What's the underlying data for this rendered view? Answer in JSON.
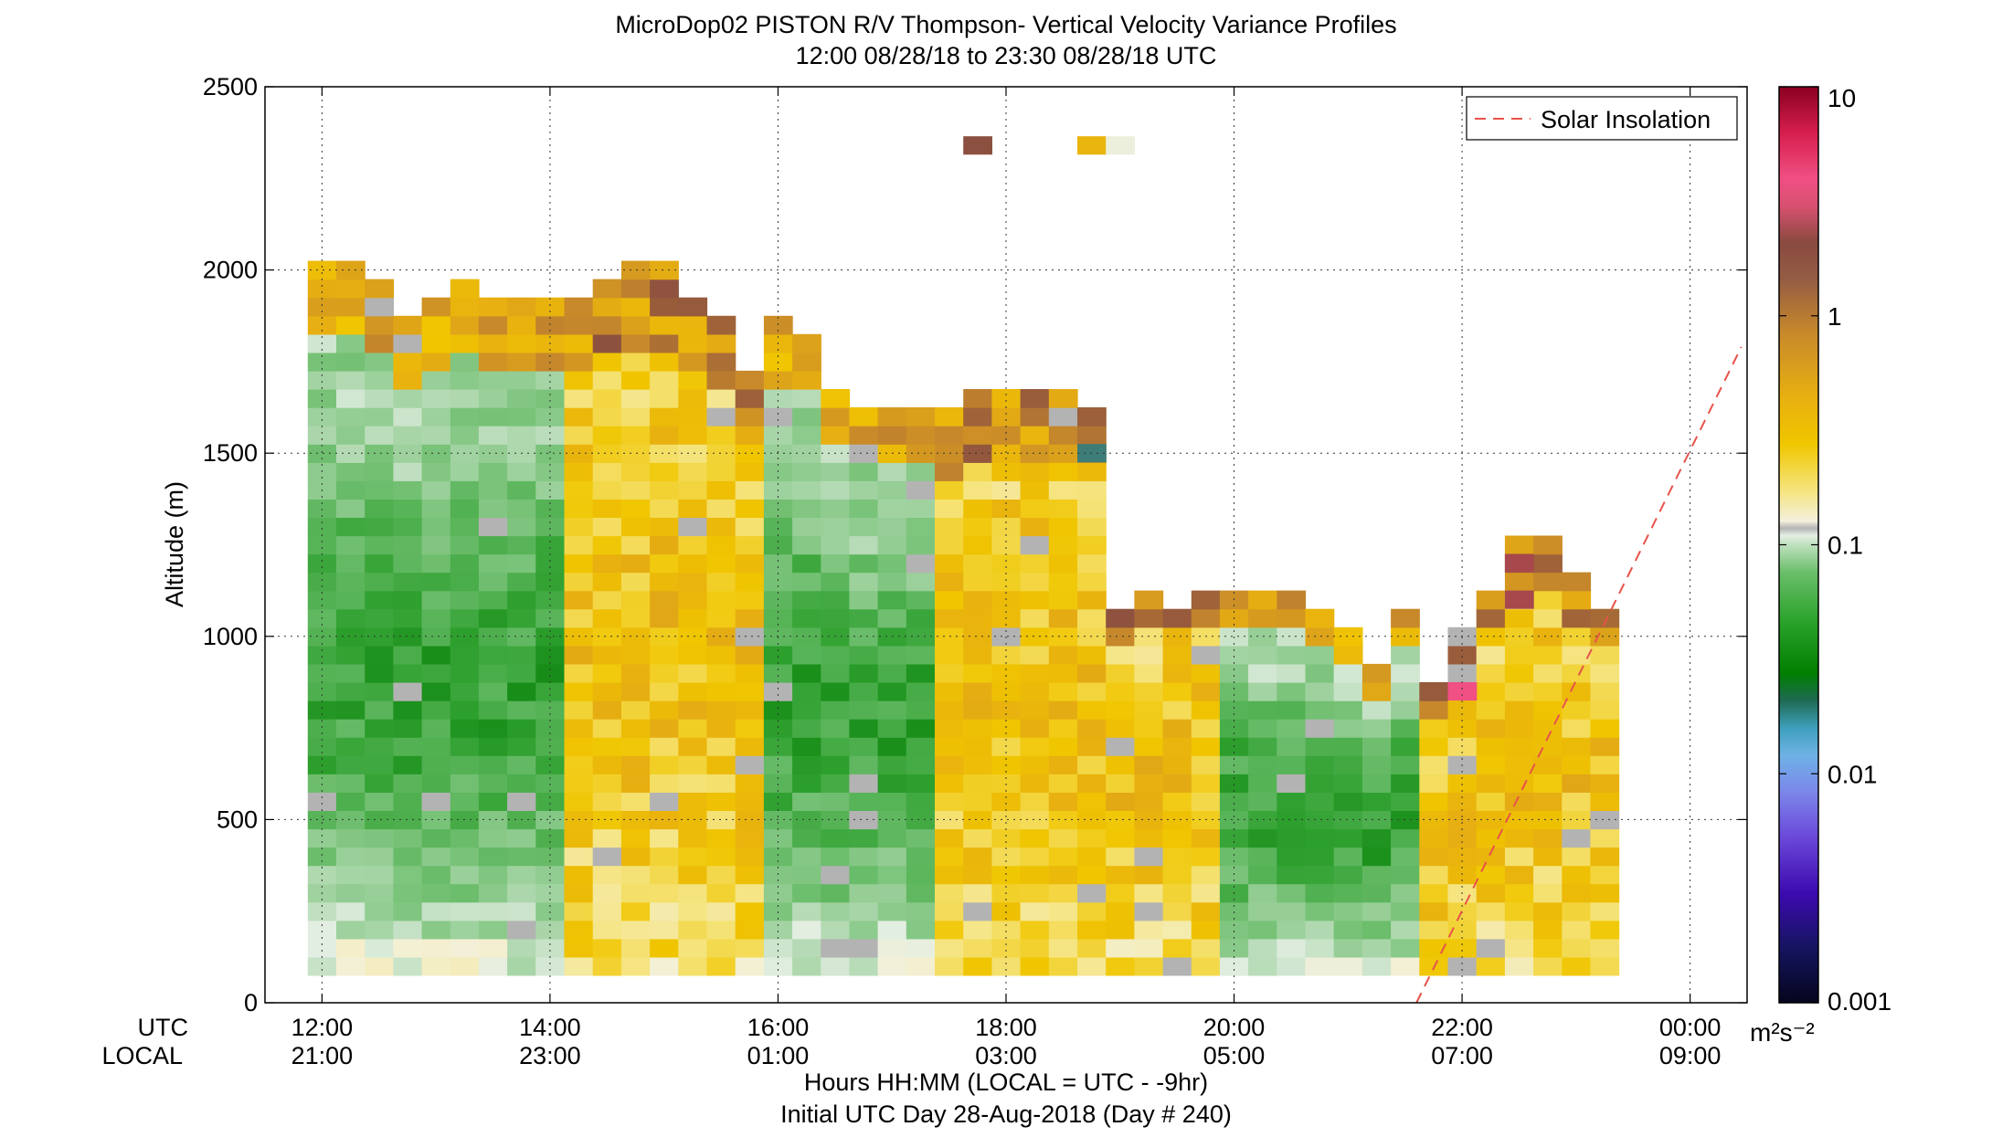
{
  "chart_data": {
    "type": "heatmap",
    "title": "MicroDop02 PISTON R/V Thompson- Vertical Velocity Variance Profiles",
    "subtitle": "12:00 08/28/18 to 23:30 08/28/18  UTC",
    "ylabel": "Altitude (m)",
    "xlabel": "Hours HH:MM  (LOCAL = UTC - -9hr)",
    "xlabel2": "Initial UTC Day 28-Aug-2018 (Day # 240)",
    "row_label_utc": "UTC",
    "row_label_local": "LOCAL",
    "xlim": [
      11.5,
      24.5
    ],
    "ylim": [
      0,
      2500
    ],
    "grid": true,
    "x_ticks_utc": [
      "12:00",
      "14:00",
      "16:00",
      "18:00",
      "20:00",
      "22:00",
      "00:00"
    ],
    "x_ticks_local": [
      "21:00",
      "23:00",
      "01:00",
      "03:00",
      "05:00",
      "07:00",
      "09:00"
    ],
    "x_tick_values": [
      12,
      14,
      16,
      18,
      20,
      22,
      24
    ],
    "y_ticks": [
      "0",
      "500",
      "1000",
      "1500",
      "2000",
      "2500"
    ],
    "y_tick_values": [
      0,
      500,
      1000,
      1500,
      2000,
      2500
    ],
    "legend": {
      "label": "Solar Insolation",
      "placement": "top-right",
      "color": "#e8524a"
    },
    "solar_insolation_line": {
      "x": [
        21.6,
        24.45
      ],
      "y": [
        0,
        1790
      ]
    },
    "colorbar": {
      "scale": "log",
      "range": [
        0.001,
        10
      ],
      "tick_labels": [
        "10",
        "1",
        "0.1",
        "0.01",
        "0.001"
      ],
      "tick_values": [
        10,
        1,
        0.1,
        0.01,
        0.001
      ],
      "units": "m²s⁻²"
    },
    "grid_spec": {
      "time_start_utc": 12.0,
      "time_step_hr": 0.25,
      "altitude_bottom_m": 75,
      "altitude_step_m": 50
    },
    "profiles": [
      {
        "time": "12:00",
        "top_m": 1980,
        "regime": "moist"
      },
      {
        "time": "12:15",
        "top_m": 1980,
        "regime": "moist"
      },
      {
        "time": "12:30",
        "top_m": 1950,
        "regime": "moist"
      },
      {
        "time": "12:45",
        "top_m": 1850,
        "regime": "moist"
      },
      {
        "time": "13:00",
        "top_m": 1900,
        "regime": "moist"
      },
      {
        "time": "13:15",
        "top_m": 1950,
        "regime": "moist"
      },
      {
        "time": "13:30",
        "top_m": 1900,
        "regime": "moist"
      },
      {
        "time": "13:45",
        "top_m": 1900,
        "regime": "moist"
      },
      {
        "time": "14:00",
        "top_m": 1900,
        "regime": "moist"
      },
      {
        "time": "14:15",
        "top_m": 1900,
        "regime": "dry"
      },
      {
        "time": "14:30",
        "top_m": 1950,
        "regime": "dry"
      },
      {
        "time": "14:45",
        "top_m": 1980,
        "regime": "dry"
      },
      {
        "time": "15:00",
        "top_m": 1980,
        "regime": "dry"
      },
      {
        "time": "15:15",
        "top_m": 1900,
        "regime": "dry"
      },
      {
        "time": "15:30",
        "top_m": 1850,
        "regime": "dry"
      },
      {
        "time": "15:45",
        "top_m": 1700,
        "regime": "dry"
      },
      {
        "time": "16:00",
        "top_m": 1850,
        "regime": "moist"
      },
      {
        "time": "16:15",
        "top_m": 1800,
        "regime": "moist"
      },
      {
        "time": "16:30",
        "top_m": 1650,
        "regime": "moist"
      },
      {
        "time": "16:45",
        "top_m": 1600,
        "regime": "moist"
      },
      {
        "time": "17:00",
        "top_m": 1600,
        "regime": "moist"
      },
      {
        "time": "17:15",
        "top_m": 1600,
        "regime": "moist"
      },
      {
        "time": "17:30",
        "top_m": 1600,
        "regime": "dry"
      },
      {
        "time": "17:45",
        "top_m": 1650,
        "regime": "dry"
      },
      {
        "time": "18:00",
        "top_m": 1650,
        "regime": "dry"
      },
      {
        "time": "18:15",
        "top_m": 1650,
        "regime": "dry"
      },
      {
        "time": "18:30",
        "top_m": 1650,
        "regime": "dry"
      },
      {
        "time": "18:45",
        "top_m": 1600,
        "regime": "dry"
      },
      {
        "time": "19:00",
        "top_m": 1050,
        "regime": "dry"
      },
      {
        "time": "19:15",
        "top_m": 1100,
        "regime": "dry"
      },
      {
        "time": "19:30",
        "top_m": 1050,
        "regime": "dry"
      },
      {
        "time": "19:45",
        "top_m": 1100,
        "regime": "dry"
      },
      {
        "time": "20:00",
        "top_m": 1100,
        "regime": "moist"
      },
      {
        "time": "20:15",
        "top_m": 1100,
        "regime": "moist"
      },
      {
        "time": "20:30",
        "top_m": 1100,
        "regime": "moist"
      },
      {
        "time": "20:45",
        "top_m": 1050,
        "regime": "moist"
      },
      {
        "time": "21:00",
        "top_m": 1000,
        "regime": "moist"
      },
      {
        "time": "21:15",
        "top_m": 900,
        "regime": "moist"
      },
      {
        "time": "21:30",
        "top_m": 1050,
        "regime": "moist"
      },
      {
        "time": "21:45",
        "top_m": 850,
        "regime": "dry"
      },
      {
        "time": "22:00",
        "top_m": 1000,
        "regime": "dry"
      },
      {
        "time": "22:15",
        "top_m": 1100,
        "regime": "dry"
      },
      {
        "time": "22:30",
        "top_m": 1250,
        "regime": "dry"
      },
      {
        "time": "22:45",
        "top_m": 1250,
        "regime": "dry"
      },
      {
        "time": "23:00",
        "top_m": 1150,
        "regime": "dry"
      },
      {
        "time": "23:15",
        "top_m": 1050,
        "regime": "dry"
      }
    ],
    "isolated_cells": [
      {
        "time": "17:45",
        "altitude_m": 2340,
        "variance": 2.0
      },
      {
        "time": "18:45",
        "altitude_m": 2340,
        "variance": 0.4
      },
      {
        "time": "19:00",
        "altitude_m": 2340,
        "variance": 0.1
      },
      {
        "time": "18:45",
        "altitude_m": 1500,
        "variance": 0.007
      },
      {
        "time": "22:00",
        "altitude_m": 850,
        "variance": 4.0
      },
      {
        "time": "22:30",
        "altitude_m": 1100,
        "variance": 3.0
      },
      {
        "time": "22:30",
        "altitude_m": 1200,
        "variance": 3.0
      }
    ]
  }
}
